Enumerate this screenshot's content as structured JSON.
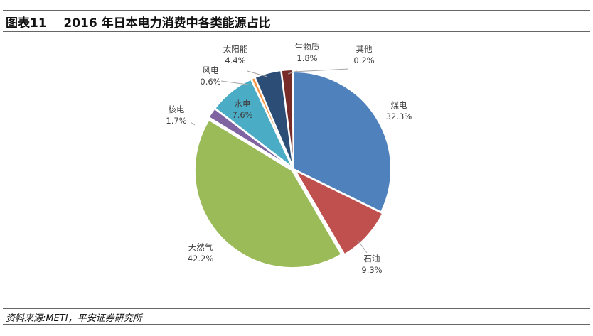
{
  "header": {
    "figure_no": "图表11",
    "title": "2016 年日本电力消费中各类能源占比"
  },
  "footer": {
    "source": "资料来源:METI，平安证券研究所"
  },
  "chart_data": {
    "type": "pie",
    "title": "2016 年日本电力消费中各类能源占比",
    "slices": [
      {
        "label": "煤电",
        "value": 32.3,
        "value_label": "32.3%",
        "color": "#4F81BD"
      },
      {
        "label": "石油",
        "value": 9.3,
        "value_label": "9.3%",
        "color": "#C0504D"
      },
      {
        "label": "天然气",
        "value": 42.2,
        "value_label": "42.2%",
        "color": "#9BBB59"
      },
      {
        "label": "核电",
        "value": 1.7,
        "value_label": "1.7%",
        "color": "#8064A2"
      },
      {
        "label": "水电",
        "value": 7.6,
        "value_label": "7.6%",
        "color": "#4BACC6"
      },
      {
        "label": "风电",
        "value": 0.6,
        "value_label": "0.6%",
        "color": "#F79646"
      },
      {
        "label": "太阳能",
        "value": 4.4,
        "value_label": "4.4%",
        "color": "#2C4D75"
      },
      {
        "label": "生物质",
        "value": 1.8,
        "value_label": "1.8%",
        "color": "#772C2A"
      },
      {
        "label": "其他",
        "value": 0.2,
        "value_label": "0.2%",
        "color": "#5F7530"
      }
    ],
    "start": "12 o'clock",
    "direction": "clockwise",
    "legend": "none"
  }
}
